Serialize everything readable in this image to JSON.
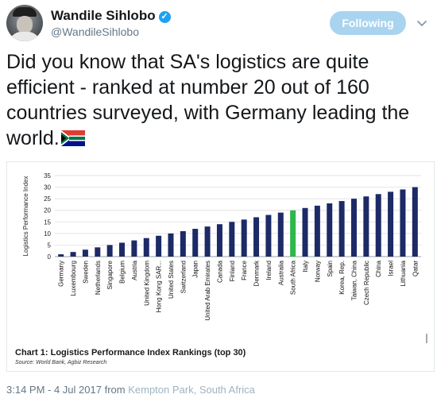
{
  "user": {
    "name": "Wandile Sihlobo",
    "handle": "@WandileSihlobo",
    "verified_mark": "✓"
  },
  "follow_button": {
    "label": "Following"
  },
  "tweet": {
    "text": "Did you know that SA's logistics are quite efficient - ranked at number 20 out of 160 countries surveyed, with Germany leading the world."
  },
  "meta": {
    "time": "3:14 PM - 4 Jul 2017",
    "from": "from",
    "location": "Kempton Park, South Africa"
  },
  "icons": {
    "chevron": "chevron-down-icon",
    "verified": "verified-badge-icon",
    "flag": "south-africa-flag-icon"
  },
  "colors": {
    "bar": "#1c2a66",
    "highlight": "#2db84a",
    "button": "#a8d4ef"
  },
  "chart_data": {
    "type": "bar",
    "title": "Chart 1: Logistics Performance Index Rankings (top 30)",
    "source": "Source: World Bank, Agbiz Research",
    "ylabel": "Logistics Performance Index",
    "xlabel": "",
    "ylim": [
      0,
      35
    ],
    "yticks": [
      0,
      5,
      10,
      15,
      20,
      25,
      30,
      35
    ],
    "grid": true,
    "highlight_category": "South Africa",
    "categories": [
      "Germany",
      "Luxembourg",
      "Sweden",
      "Netherlands",
      "Singapore",
      "Belgium",
      "Austria",
      "United Kingdom",
      "Hong Kong SAR...",
      "United States",
      "Switzerland",
      "Japan",
      "United Arab Emirates",
      "Canada",
      "Finland",
      "France",
      "Denmark",
      "Ireland",
      "Australia",
      "South Africa",
      "Italy",
      "Norway",
      "Spain",
      "Korea, Rep.",
      "Taiwan, China",
      "Czech Republic",
      "China",
      "Israel",
      "Lithuania",
      "Qatar"
    ],
    "values": [
      1,
      2,
      3,
      4,
      5,
      6,
      7,
      8,
      9,
      10,
      11,
      12,
      13,
      14,
      15,
      16,
      17,
      18,
      19,
      20,
      21,
      22,
      23,
      24,
      25,
      26,
      27,
      28,
      29,
      30
    ]
  }
}
